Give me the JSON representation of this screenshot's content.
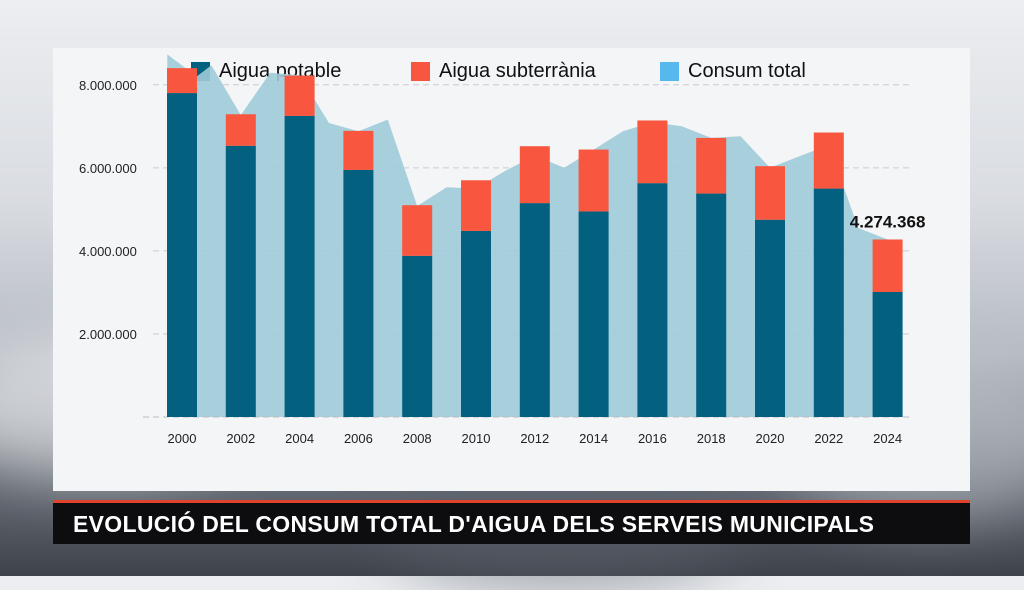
{
  "caption": "EVOLUCIÓ DEL CONSUM TOTAL D'AIGUA DELS SERVEIS MUNICIPALS",
  "chart_data": {
    "type": "bar",
    "stacked": true,
    "title": "",
    "xlabel": "",
    "ylabel": "",
    "ylim": [
      0,
      8500000
    ],
    "yticks": [
      2000000,
      4000000,
      6000000,
      8000000
    ],
    "ytick_labels": [
      "2.000.000",
      "4.000.000",
      "6.000.000",
      "8.000.000"
    ],
    "grid": true,
    "legend_position": "top",
    "categories": [
      "2000",
      "2002",
      "2004",
      "2006",
      "2008",
      "2010",
      "2012",
      "2014",
      "2016",
      "2018",
      "2020",
      "2022",
      "2024"
    ],
    "series": [
      {
        "name": "Aigua potable",
        "color": "#03607f",
        "values": [
          7800000,
          6530000,
          7250000,
          5950000,
          3880000,
          4480000,
          5150000,
          4950000,
          5630000,
          5380000,
          4750000,
          5500000,
          3010000
        ]
      },
      {
        "name": "Aigua subterrània",
        "color": "#f8563f",
        "values": [
          600000,
          760000,
          970000,
          940000,
          1220000,
          1220000,
          1370000,
          1490000,
          1510000,
          1340000,
          1290000,
          1350000,
          1264368
        ]
      }
    ],
    "area": {
      "name": "Consum total",
      "color": "#9fcbd8",
      "legend_color": "#56b8ec",
      "x": [
        1999.5,
        2000.5,
        2001,
        2002,
        2003,
        2004,
        2005,
        2006,
        2007,
        2008,
        2009,
        2010,
        2011,
        2012,
        2013,
        2014,
        2015,
        2016,
        2017,
        2018,
        2019,
        2020,
        2021,
        2022,
        2023,
        2024
      ],
      "y": [
        8730000,
        8200000,
        8470000,
        7270000,
        8290000,
        8230000,
        7080000,
        6880000,
        7160000,
        5080000,
        5530000,
        5500000,
        5930000,
        6290000,
        6000000,
        6440000,
        6880000,
        7100000,
        7000000,
        6720000,
        6760000,
        6000000,
        6280000,
        6550000,
        4550000,
        4274368
      ]
    },
    "annotations": [
      {
        "category": "2024",
        "text": "4.274.368"
      }
    ]
  }
}
